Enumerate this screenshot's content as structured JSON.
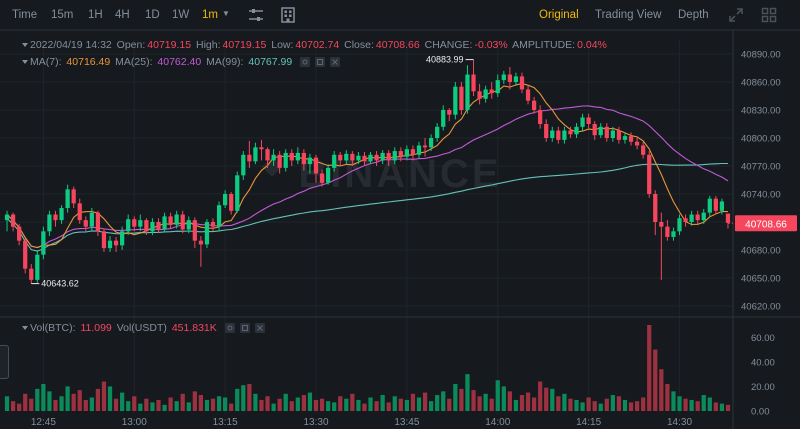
{
  "toolbar": {
    "timeframes": [
      "Time",
      "15m",
      "1H",
      "4H",
      "1D",
      "1W",
      "1m"
    ],
    "active_timeframe": "1m",
    "views": [
      "Original",
      "Trading View",
      "Depth"
    ],
    "active_view": "Original",
    "icons": [
      "indicator-settings-icon",
      "layout-grid-icon",
      "fullscreen-icon",
      "panel-grid-icon"
    ]
  },
  "info": {
    "datetime": "2022/04/19 14:32",
    "open_label": "Open:",
    "open": "40719.15",
    "high_label": "High:",
    "high": "40719.15",
    "low_label": "Low:",
    "low": "40702.74",
    "close_label": "Close:",
    "close": "40708.66",
    "change_label": "CHANGE:",
    "change": "-0.03%",
    "amplitude_label": "AMPLITUDE:",
    "amplitude": "0.04%"
  },
  "ma": {
    "ma7_label": "MA(7):",
    "ma7": "40716.49",
    "ma25_label": "MA(25):",
    "ma25": "40762.40",
    "ma99_label": "MA(99):",
    "ma99": "40767.99"
  },
  "vol": {
    "btc_label": "Vol(BTC):",
    "btc": "11.099",
    "usdt_label": "Vol(USDT)",
    "usdt": "451.831K"
  },
  "watermark": "BINANCE",
  "colors": {
    "up": "#0ecb81",
    "down": "#f6465d",
    "ma7": "#e8963a",
    "ma25": "#c25ad9",
    "ma99": "#63c2b8",
    "accent": "#f0b90b",
    "background": "#161a1e",
    "grid": "#1f242b"
  },
  "chart_data": {
    "type": "candlestick",
    "x_ticks": [
      "12:45",
      "13:00",
      "13:15",
      "13:30",
      "13:45",
      "14:00",
      "14:15",
      "14:30"
    ],
    "price_ticks": [
      40620,
      40650,
      40680,
      40710,
      40740,
      40770,
      40800,
      40830,
      40860,
      40890
    ],
    "price_tick_labels": [
      "40620.00",
      "40650.00",
      "40680.00",
      "40710.00",
      "40740.00",
      "40770.00",
      "40800.00",
      "40830.00",
      "40860.00",
      "40890.00"
    ],
    "volume_ticks": [
      0,
      20,
      40,
      60
    ],
    "volume_tick_labels": [
      "0.00",
      "20.00",
      "40.00",
      "60.00"
    ],
    "price_ylim": [
      40605,
      40905
    ],
    "volume_ylim": [
      0,
      70
    ],
    "high_label": "40883.99",
    "low_label": "40643.62",
    "last_price": "40708.66",
    "candles": [
      [
        40712,
        40718,
        40700,
        40722
      ],
      [
        40718,
        40705,
        40700,
        40720
      ],
      [
        40705,
        40690,
        40685,
        40708
      ],
      [
        40690,
        40660,
        40655,
        40692
      ],
      [
        40660,
        40648,
        40644,
        40665
      ],
      [
        40648,
        40675,
        40645,
        40680
      ],
      [
        40675,
        40700,
        40670,
        40705
      ],
      [
        40700,
        40718,
        40695,
        40722
      ],
      [
        40718,
        40712,
        40705,
        40722
      ],
      [
        40712,
        40725,
        40708,
        40728
      ],
      [
        40725,
        40745,
        40720,
        40750
      ],
      [
        40745,
        40730,
        40725,
        40748
      ],
      [
        40730,
        40712,
        40708,
        40735
      ],
      [
        40712,
        40705,
        40700,
        40716
      ],
      [
        40705,
        40720,
        40700,
        40725
      ],
      [
        40720,
        40700,
        40695,
        40722
      ],
      [
        40700,
        40682,
        40678,
        40703
      ],
      [
        40682,
        40690,
        40678,
        40695
      ],
      [
        40690,
        40685,
        40678,
        40694
      ],
      [
        40685,
        40700,
        40680,
        40705
      ],
      [
        40700,
        40713,
        40696,
        40718
      ],
      [
        40713,
        40705,
        40700,
        40716
      ],
      [
        40705,
        40712,
        40700,
        40718
      ],
      [
        40712,
        40700,
        40696,
        40714
      ],
      [
        40700,
        40710,
        40696,
        40714
      ],
      [
        40710,
        40702,
        40698,
        40714
      ],
      [
        40702,
        40716,
        40700,
        40720
      ],
      [
        40716,
        40707,
        40703,
        40720
      ],
      [
        40707,
        40718,
        40703,
        40722
      ],
      [
        40718,
        40702,
        40698,
        40722
      ],
      [
        40702,
        40712,
        40698,
        40716
      ],
      [
        40712,
        40690,
        40682,
        40715
      ],
      [
        40690,
        40686,
        40662,
        40695
      ],
      [
        40686,
        40710,
        40682,
        40713
      ],
      [
        40710,
        40705,
        40700,
        40714
      ],
      [
        40705,
        40728,
        40700,
        40732
      ],
      [
        40728,
        40740,
        40725,
        40744
      ],
      [
        40740,
        40722,
        40718,
        40742
      ],
      [
        40722,
        40760,
        40720,
        40764
      ],
      [
        40760,
        40782,
        40755,
        40786
      ],
      [
        40782,
        40775,
        40768,
        40797
      ],
      [
        40775,
        40790,
        40772,
        40795
      ],
      [
        40790,
        40788,
        40776,
        40798
      ],
      [
        40788,
        40776,
        40768,
        40790
      ],
      [
        40776,
        40782,
        40770,
        40788
      ],
      [
        40782,
        40768,
        40762,
        40786
      ],
      [
        40768,
        40784,
        40764,
        40788
      ],
      [
        40784,
        40776,
        40770,
        40788
      ],
      [
        40776,
        40784,
        40772,
        40790
      ],
      [
        40784,
        40772,
        40765,
        40788
      ],
      [
        40772,
        40779,
        40762,
        40783
      ],
      [
        40779,
        40762,
        40752,
        40782
      ],
      [
        40762,
        40752,
        40748,
        40766
      ],
      [
        40752,
        40768,
        40750,
        40772
      ],
      [
        40768,
        40782,
        40764,
        40786
      ],
      [
        40782,
        40776,
        40770,
        40785
      ],
      [
        40776,
        40783,
        40772,
        40787
      ],
      [
        40783,
        40776,
        40770,
        40786
      ],
      [
        40776,
        40781,
        40772,
        40785
      ],
      [
        40781,
        40775,
        40770,
        40785
      ],
      [
        40775,
        40782,
        40772,
        40785
      ],
      [
        40782,
        40776,
        40770,
        40786
      ],
      [
        40776,
        40784,
        40772,
        40787
      ],
      [
        40784,
        40776,
        40770,
        40787
      ],
      [
        40776,
        40786,
        40772,
        40790
      ],
      [
        40786,
        40780,
        40775,
        40790
      ],
      [
        40780,
        40788,
        40776,
        40792
      ],
      [
        40788,
        40782,
        40776,
        40792
      ],
      [
        40782,
        40792,
        40778,
        40796
      ],
      [
        40792,
        40790,
        40780,
        40800
      ],
      [
        40790,
        40800,
        40786,
        40804
      ],
      [
        40800,
        40812,
        40796,
        40816
      ],
      [
        40812,
        40830,
        40808,
        40835
      ],
      [
        40830,
        40825,
        40818,
        40832
      ],
      [
        40825,
        40855,
        40820,
        40860
      ],
      [
        40855,
        40830,
        40825,
        40860
      ],
      [
        40830,
        40868,
        40826,
        40878
      ],
      [
        40868,
        40850,
        40845,
        40884
      ],
      [
        40850,
        40842,
        40836,
        40858
      ],
      [
        40842,
        40852,
        40838,
        40856
      ],
      [
        40852,
        40848,
        40842,
        40860
      ],
      [
        40848,
        40862,
        40844,
        40868
      ],
      [
        40862,
        40868,
        40858,
        40872
      ],
      [
        40868,
        40860,
        40852,
        40876
      ],
      [
        40860,
        40866,
        40856,
        40870
      ],
      [
        40866,
        40852,
        40848,
        40870
      ],
      [
        40852,
        40840,
        40836,
        40856
      ],
      [
        40840,
        40830,
        40826,
        40844
      ],
      [
        40830,
        40815,
        40810,
        40835
      ],
      [
        40815,
        40800,
        40796,
        40820
      ],
      [
        40800,
        40808,
        40796,
        40812
      ],
      [
        40808,
        40798,
        40794,
        40812
      ],
      [
        40798,
        40808,
        40794,
        40812
      ],
      [
        40808,
        40804,
        40800,
        40812
      ],
      [
        40804,
        40812,
        40800,
        40816
      ],
      [
        40812,
        40822,
        40808,
        40826
      ],
      [
        40822,
        40815,
        40810,
        40826
      ],
      [
        40815,
        40803,
        40798,
        40818
      ],
      [
        40803,
        40812,
        40800,
        40816
      ],
      [
        40812,
        40800,
        40796,
        40816
      ],
      [
        40800,
        40808,
        40796,
        40812
      ],
      [
        40808,
        40798,
        40794,
        40812
      ],
      [
        40798,
        40802,
        40794,
        40806
      ],
      [
        40802,
        40796,
        40792,
        40806
      ],
      [
        40796,
        40792,
        40788,
        40800
      ],
      [
        40792,
        40782,
        40778,
        40796
      ],
      [
        40782,
        40740,
        40736,
        40786
      ],
      [
        40740,
        40710,
        40696,
        40744
      ],
      [
        40710,
        40705,
        40648,
        40720
      ],
      [
        40705,
        40694,
        40690,
        40712
      ],
      [
        40694,
        40700,
        40690,
        40704
      ],
      [
        40700,
        40714,
        40696,
        40718
      ],
      [
        40714,
        40710,
        40705,
        40718
      ],
      [
        40710,
        40718,
        40706,
        40722
      ],
      [
        40718,
        40712,
        40708,
        40722
      ],
      [
        40712,
        40720,
        40708,
        40724
      ],
      [
        40720,
        40735,
        40716,
        40738
      ],
      [
        40735,
        40722,
        40718,
        40738
      ],
      [
        40722,
        40732,
        40718,
        40735
      ],
      [
        40719,
        40709,
        40703,
        40719
      ]
    ],
    "volumes": [
      12,
      8,
      6,
      14,
      10,
      18,
      22,
      16,
      9,
      12,
      20,
      14,
      17,
      9,
      11,
      18,
      24,
      20,
      10,
      15,
      8,
      12,
      6,
      10,
      7,
      9,
      5,
      11,
      8,
      14,
      7,
      16,
      13,
      9,
      10,
      12,
      11,
      6,
      18,
      21,
      22,
      14,
      9,
      12,
      6,
      10,
      14,
      8,
      11,
      13,
      15,
      9,
      10,
      8,
      7,
      12,
      10,
      14,
      9,
      6,
      11,
      8,
      13,
      7,
      12,
      10,
      9,
      14,
      11,
      15,
      8,
      13,
      16,
      10,
      22,
      18,
      30,
      17,
      12,
      14,
      10,
      25,
      20,
      16,
      9,
      13,
      15,
      11,
      24,
      19,
      18,
      12,
      14,
      10,
      9,
      7,
      11,
      8,
      6,
      10,
      13,
      12,
      9,
      7,
      8,
      11,
      70,
      50,
      34,
      22,
      16,
      12,
      10,
      9,
      8,
      13,
      11,
      7,
      6,
      5
    ],
    "ma7": [],
    "ma25": [],
    "ma99": []
  }
}
